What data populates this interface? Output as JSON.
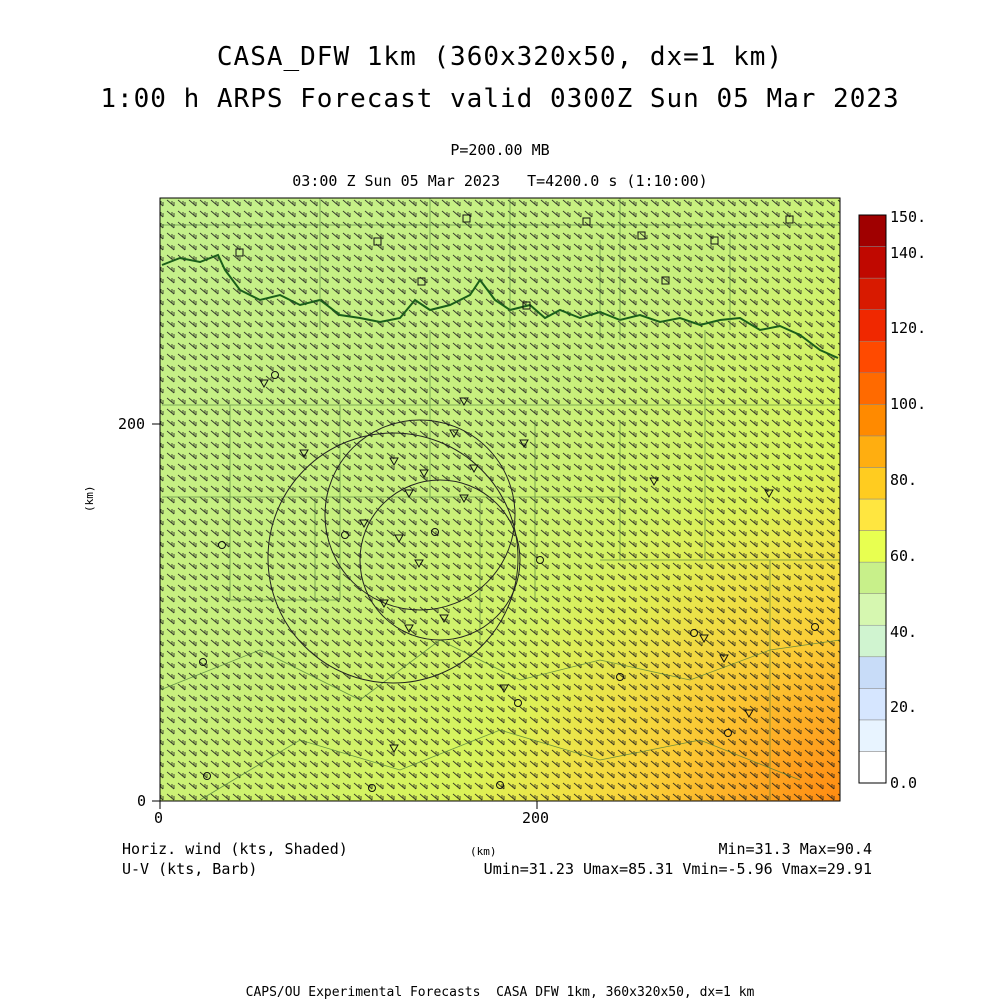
{
  "header": {
    "title_line1": "CASA_DFW 1km (360x320x50, dx=1 km)",
    "title_line2": "1:00 h ARPS Forecast valid 0300Z Sun 05 Mar 2023",
    "level": "P=200.00 MB",
    "valid_time": "03:00 Z Sun 05 Mar 2023   T=4200.0 s (1:10:00)"
  },
  "axes": {
    "x_unit": "(km)",
    "y_unit": "(km)",
    "x_ticks": [
      "0",
      "200"
    ],
    "y_ticks": [
      "0",
      "200"
    ]
  },
  "colorbar": {
    "labels": [
      "150.",
      "140.",
      "120.",
      "100.",
      "80.",
      "60.",
      "40.",
      "20.",
      "0.0"
    ],
    "colors": [
      "#ffffff",
      "#e8f4ff",
      "#d6e6ff",
      "#c8dcf8",
      "#d0f4d0",
      "#d6f7b0",
      "#c8f08a",
      "#e8ff50",
      "#ffe640",
      "#ffcc20",
      "#ffae10",
      "#ff8a00",
      "#ff6a00",
      "#ff4a00",
      "#f02800",
      "#d81a00",
      "#c00800",
      "#a00000"
    ]
  },
  "footer": {
    "field_label": "Horiz. wind (kts, Shaded)",
    "vector_label": "U-V (kts, Barb)",
    "min_max": "Min=31.3 Max=90.4",
    "uv_range": "Umin=31.23 Umax=85.31 Vmin=-5.96 Vmax=29.91",
    "credit": "CAPS/OU Experimental Forecasts  CASA DFW 1km, 360x320x50, dx=1 km"
  }
}
